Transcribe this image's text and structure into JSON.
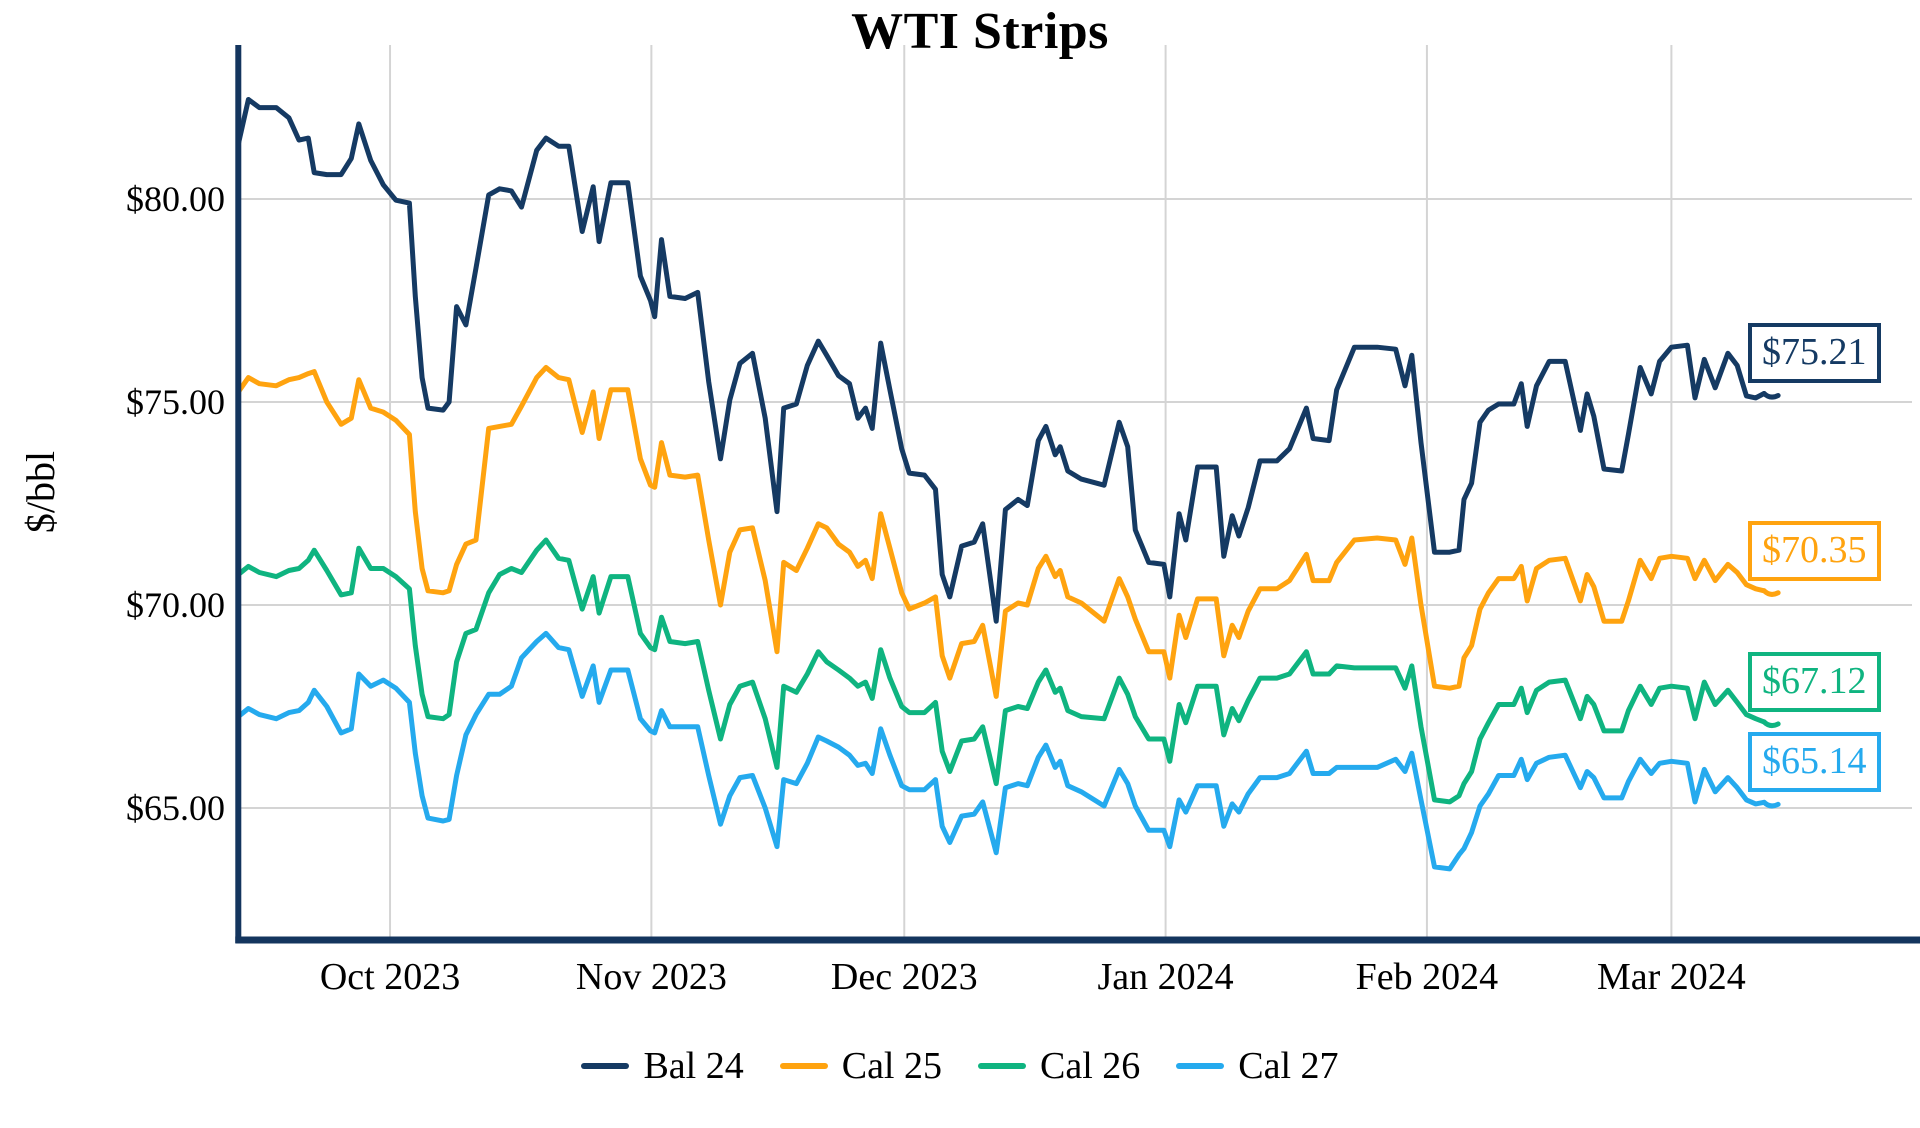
{
  "title": "WTI Strips",
  "chart_data": {
    "type": "line",
    "title": "WTI Strips",
    "xlabel": "",
    "ylabel": "$/bbl",
    "grid": true,
    "legend_position": "bottom-center",
    "y_axis": {
      "ticks": [
        {
          "value": 80,
          "label": "$80.00"
        },
        {
          "value": 75,
          "label": "$75.00"
        },
        {
          "value": 70,
          "label": "$70.00"
        },
        {
          "value": 65,
          "label": "$65.00"
        }
      ],
      "range": [
        61.7,
        83.8
      ]
    },
    "x_axis": {
      "note": "day index 0 = first plotted session (mid-Sep 2023); ticks mark month starts",
      "ticks": [
        {
          "day": 18,
          "label": "Oct 2023"
        },
        {
          "day": 49,
          "label": "Nov 2023"
        },
        {
          "day": 79,
          "label": "Dec 2023"
        },
        {
          "day": 110,
          "label": "Jan 2024"
        },
        {
          "day": 141,
          "label": "Feb 2024"
        },
        {
          "day": 170,
          "label": "Mar 2024"
        }
      ],
      "range_days": [
        0,
        181
      ]
    },
    "days": [
      0,
      1.2,
      2.5,
      4.5,
      6,
      7.2,
      8.3,
      9,
      10.5,
      12.2,
      13.4,
      14.3,
      15.7,
      17.2,
      18.7,
      20.3,
      21,
      21.8,
      22.5,
      24.3,
      25,
      25.9,
      27,
      28.2,
      29.7,
      31,
      32.4,
      33.6,
      35.4,
      36.5,
      38,
      39.2,
      40.8,
      42.1,
      42.8,
      44.2,
      46.2,
      47.7,
      48.9,
      49.4,
      50.2,
      51.2,
      53,
      54.5,
      55.8,
      57.2,
      58.3,
      59.5,
      61,
      62.5,
      63.9,
      64.7,
      66.2,
      67.5,
      68.8,
      69.8,
      71.2,
      72.5,
      73.5,
      74.4,
      75.2,
      76.2,
      77.3,
      78.7,
      79.6,
      81.4,
      82.7,
      83.5,
      84.4,
      85.8,
      87.3,
      88.3,
      89.9,
      91,
      92.5,
      93.6,
      94.9,
      95.8,
      96.9,
      97.5,
      98.4,
      100,
      102.7,
      104.5,
      105.5,
      106.4,
      108,
      109.8,
      110.5,
      111.6,
      112.4,
      113.8,
      116,
      116.9,
      117.9,
      118.7,
      119.8,
      121.2,
      123.2,
      124.7,
      126.7,
      127.5,
      129.4,
      130.3,
      132.4,
      135.1,
      137.3,
      138.4,
      139.2,
      140.3,
      141.9,
      143.7,
      144.8,
      145.4,
      146.3,
      147.3,
      148.3,
      149.5,
      151.3,
      152.2,
      152.9,
      154,
      155.5,
      157.4,
      159.2,
      160,
      160.8,
      162,
      164.1,
      164.9,
      166.3,
      167.6,
      168.6,
      170,
      171.9,
      172.8,
      173.9,
      175.2,
      176.7,
      177.8,
      178.9,
      180,
      181
    ],
    "series": [
      {
        "name": "Bal 24",
        "color": "#153a63",
        "end_label": "$75.21",
        "end_value": 75.21,
        "values": [
          81.35,
          82.45,
          82.25,
          82.25,
          82.0,
          81.45,
          81.5,
          80.65,
          80.6,
          80.6,
          81.0,
          81.85,
          80.95,
          80.35,
          79.97,
          79.9,
          77.6,
          75.6,
          74.85,
          74.8,
          75.0,
          77.35,
          76.9,
          78.3,
          80.1,
          80.25,
          80.2,
          79.8,
          81.2,
          81.5,
          81.3,
          81.3,
          79.2,
          80.3,
          78.95,
          80.4,
          80.4,
          78.1,
          77.5,
          77.1,
          79.0,
          77.6,
          77.55,
          77.7,
          75.5,
          73.6,
          75.05,
          75.95,
          76.2,
          74.6,
          72.3,
          74.85,
          74.95,
          75.9,
          76.5,
          76.15,
          75.65,
          75.45,
          74.6,
          74.85,
          74.35,
          76.45,
          75.3,
          73.85,
          73.25,
          73.2,
          72.85,
          70.75,
          70.2,
          71.45,
          71.55,
          72.0,
          69.6,
          72.35,
          72.6,
          72.45,
          74.05,
          74.4,
          73.7,
          73.9,
          73.3,
          73.1,
          72.95,
          74.5,
          73.9,
          71.85,
          71.05,
          71.0,
          70.2,
          72.25,
          71.6,
          73.4,
          73.4,
          71.2,
          72.2,
          71.7,
          72.4,
          73.55,
          73.55,
          73.85,
          74.85,
          74.1,
          74.05,
          75.3,
          76.35,
          76.35,
          76.3,
          75.4,
          76.15,
          74.0,
          71.3,
          71.3,
          71.35,
          72.6,
          73.0,
          74.5,
          74.8,
          74.95,
          74.95,
          75.45,
          74.4,
          75.4,
          76.0,
          76.0,
          74.3,
          75.2,
          74.65,
          73.35,
          73.3,
          74.2,
          75.85,
          75.2,
          76.0,
          76.35,
          76.4,
          75.1,
          76.05,
          75.35,
          76.2,
          75.9,
          75.15,
          75.1,
          75.21
        ]
      },
      {
        "name": "Cal 25",
        "color": "#ffa30f",
        "end_label": "$70.35",
        "end_value": 70.35,
        "values": [
          75.25,
          75.6,
          75.45,
          75.4,
          75.55,
          75.6,
          75.7,
          75.75,
          75.0,
          74.45,
          74.6,
          75.55,
          74.85,
          74.75,
          74.55,
          74.2,
          72.3,
          70.9,
          70.35,
          70.3,
          70.35,
          71.0,
          71.5,
          71.6,
          74.35,
          74.4,
          74.45,
          74.9,
          75.6,
          75.85,
          75.6,
          75.55,
          74.25,
          75.25,
          74.1,
          75.3,
          75.3,
          73.6,
          72.95,
          72.9,
          74.0,
          73.2,
          73.15,
          73.2,
          71.6,
          70.0,
          71.3,
          71.85,
          71.9,
          70.6,
          68.85,
          71.05,
          70.85,
          71.4,
          72.0,
          71.9,
          71.5,
          71.3,
          70.95,
          71.1,
          70.65,
          72.25,
          71.4,
          70.3,
          69.9,
          70.05,
          70.2,
          68.75,
          68.2,
          69.05,
          69.1,
          69.5,
          67.75,
          69.85,
          70.05,
          70.0,
          70.9,
          71.2,
          70.7,
          70.85,
          70.2,
          70.05,
          69.6,
          70.65,
          70.2,
          69.65,
          68.85,
          68.85,
          68.2,
          69.75,
          69.2,
          70.15,
          70.15,
          68.75,
          69.5,
          69.2,
          69.85,
          70.4,
          70.4,
          70.6,
          71.25,
          70.6,
          70.6,
          71.05,
          71.6,
          71.65,
          71.6,
          71.0,
          71.65,
          70.0,
          68.0,
          67.95,
          68.0,
          68.7,
          69.0,
          69.9,
          70.3,
          70.65,
          70.65,
          70.95,
          70.1,
          70.9,
          71.1,
          71.15,
          70.1,
          70.75,
          70.45,
          69.6,
          69.6,
          70.1,
          71.1,
          70.65,
          71.15,
          71.2,
          71.15,
          70.65,
          71.1,
          70.6,
          71.0,
          70.8,
          70.5,
          70.4,
          70.35
        ]
      },
      {
        "name": "Cal 26",
        "color": "#0fb480",
        "end_label": "$67.12",
        "end_value": 67.12,
        "values": [
          70.75,
          70.95,
          70.8,
          70.7,
          70.85,
          70.9,
          71.1,
          71.35,
          70.85,
          70.25,
          70.3,
          71.4,
          70.9,
          70.9,
          70.7,
          70.4,
          69.0,
          67.8,
          67.25,
          67.2,
          67.3,
          68.6,
          69.3,
          69.4,
          70.3,
          70.75,
          70.9,
          70.8,
          71.35,
          71.6,
          71.15,
          71.1,
          69.9,
          70.7,
          69.8,
          70.7,
          70.7,
          69.3,
          68.95,
          68.9,
          69.7,
          69.1,
          69.05,
          69.1,
          67.9,
          66.7,
          67.55,
          68.0,
          68.1,
          67.2,
          66.0,
          68.0,
          67.85,
          68.3,
          68.85,
          68.6,
          68.4,
          68.2,
          68.0,
          68.1,
          67.7,
          68.9,
          68.2,
          67.5,
          67.35,
          67.35,
          67.6,
          66.4,
          65.9,
          66.65,
          66.7,
          67.0,
          65.6,
          67.4,
          67.5,
          67.45,
          68.1,
          68.4,
          67.85,
          67.95,
          67.4,
          67.25,
          67.2,
          68.2,
          67.8,
          67.25,
          66.7,
          66.7,
          66.15,
          67.55,
          67.1,
          68.0,
          68.0,
          66.8,
          67.45,
          67.15,
          67.65,
          68.2,
          68.2,
          68.3,
          68.85,
          68.3,
          68.3,
          68.5,
          68.45,
          68.45,
          68.45,
          67.95,
          68.5,
          67.0,
          65.2,
          65.15,
          65.3,
          65.6,
          65.9,
          66.7,
          67.1,
          67.55,
          67.55,
          67.95,
          67.35,
          67.9,
          68.1,
          68.15,
          67.2,
          67.75,
          67.55,
          66.9,
          66.9,
          67.4,
          68.0,
          67.55,
          67.95,
          68.0,
          67.95,
          67.2,
          68.1,
          67.55,
          67.9,
          67.6,
          67.3,
          67.2,
          67.12
        ]
      },
      {
        "name": "Cal 27",
        "color": "#25aaee",
        "end_label": "$65.14",
        "end_value": 65.14,
        "values": [
          67.25,
          67.45,
          67.3,
          67.2,
          67.35,
          67.4,
          67.6,
          67.9,
          67.5,
          66.85,
          66.95,
          68.3,
          68.0,
          68.15,
          67.95,
          67.6,
          66.35,
          65.3,
          64.75,
          64.68,
          64.72,
          65.8,
          66.8,
          67.3,
          67.8,
          67.8,
          68.0,
          68.7,
          69.1,
          69.3,
          68.95,
          68.9,
          67.75,
          68.5,
          67.6,
          68.4,
          68.4,
          67.2,
          66.9,
          66.85,
          67.4,
          67.0,
          67.0,
          67.0,
          65.8,
          64.6,
          65.3,
          65.75,
          65.8,
          65.0,
          64.05,
          65.7,
          65.6,
          66.1,
          66.75,
          66.65,
          66.5,
          66.3,
          66.05,
          66.1,
          65.85,
          66.95,
          66.3,
          65.55,
          65.45,
          65.45,
          65.7,
          64.55,
          64.15,
          64.8,
          64.85,
          65.15,
          63.9,
          65.5,
          65.6,
          65.55,
          66.25,
          66.55,
          66.0,
          66.15,
          65.55,
          65.4,
          65.05,
          65.95,
          65.6,
          65.05,
          64.45,
          64.45,
          64.05,
          65.2,
          64.9,
          65.55,
          65.55,
          64.55,
          65.1,
          64.9,
          65.35,
          65.75,
          65.75,
          65.85,
          66.4,
          65.85,
          65.85,
          66.0,
          66.0,
          66.0,
          66.2,
          65.9,
          66.35,
          65.2,
          63.55,
          63.5,
          63.85,
          64.0,
          64.4,
          65.05,
          65.35,
          65.8,
          65.8,
          66.2,
          65.7,
          66.1,
          66.25,
          66.3,
          65.5,
          65.9,
          65.75,
          65.25,
          65.25,
          65.65,
          66.2,
          65.85,
          66.1,
          66.15,
          66.1,
          65.15,
          65.95,
          65.4,
          65.75,
          65.5,
          65.2,
          65.1,
          65.14
        ]
      }
    ],
    "colors": {
      "axis": "#14355e",
      "gridline": "#d4d4d4",
      "text": "#000000",
      "background": "#ffffff"
    }
  }
}
